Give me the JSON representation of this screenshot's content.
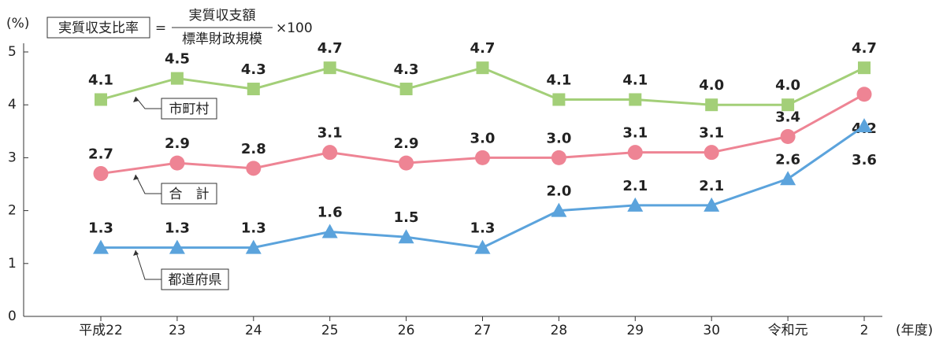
{
  "chart_data": {
    "type": "line",
    "y_unit": "(%)",
    "x_unit": "(年度)",
    "formula": {
      "name": "実質収支比率",
      "equals": "=",
      "numerator": "実質収支額",
      "denominator": "標準財政規模",
      "multiplier": "×100"
    },
    "categories": [
      "平成22",
      "23",
      "24",
      "25",
      "26",
      "27",
      "28",
      "29",
      "30",
      "令和元",
      "2"
    ],
    "series": [
      {
        "name": "市町村",
        "color": "#a3cf78",
        "marker": "square",
        "values": [
          4.1,
          4.5,
          4.3,
          4.7,
          4.3,
          4.7,
          4.1,
          4.1,
          4.0,
          4.0,
          4.7
        ],
        "value_labels": [
          "4.1",
          "4.5",
          "4.3",
          "4.7",
          "4.3",
          "4.7",
          "4.1",
          "4.1",
          "4.0",
          "4.0",
          "4.7"
        ]
      },
      {
        "name": "合　計",
        "color": "#ee8494",
        "marker": "circle",
        "values": [
          2.7,
          2.9,
          2.8,
          3.1,
          2.9,
          3.0,
          3.0,
          3.1,
          3.1,
          3.4,
          4.2
        ],
        "value_labels": [
          "2.7",
          "2.9",
          "2.8",
          "3.1",
          "2.9",
          "3.0",
          "3.0",
          "3.1",
          "3.1",
          "3.4",
          "4.2"
        ]
      },
      {
        "name": "都道府県",
        "color": "#5ba3dc",
        "marker": "triangle",
        "values": [
          1.3,
          1.3,
          1.3,
          1.6,
          1.5,
          1.3,
          2.0,
          2.1,
          2.1,
          2.6,
          3.6
        ],
        "value_labels": [
          "1.3",
          "1.3",
          "1.3",
          "1.6",
          "1.5",
          "1.3",
          "2.0",
          "2.1",
          "2.1",
          "2.6",
          "3.6"
        ]
      }
    ],
    "ylim": [
      0,
      5
    ],
    "yticks": [
      0,
      1,
      2,
      3,
      4,
      5
    ]
  }
}
